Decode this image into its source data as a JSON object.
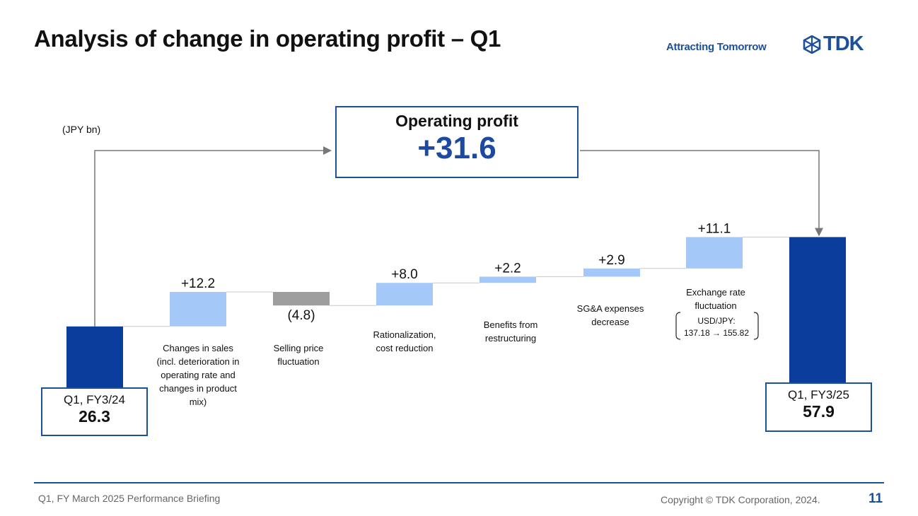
{
  "slide": {
    "title": "Analysis of change in operating profit – Q1",
    "tagline": "Attracting Tomorrow",
    "logo_text": "TDK",
    "unit": "(JPY bn)"
  },
  "summary": {
    "label": "Operating profit",
    "value": "+31.6"
  },
  "chart_data": {
    "type": "bar",
    "subtype": "waterfall",
    "categories": [
      "Q1, FY3/24",
      "Changes in sales",
      "Selling price fluctuation",
      "Rationalization, cost reduction",
      "Benefits from restructuring",
      "SG&A expenses decrease",
      "Exchange rate fluctuation",
      "Q1, FY3/25"
    ],
    "kinds": [
      "total",
      "delta",
      "delta",
      "delta",
      "delta",
      "delta",
      "delta",
      "total"
    ],
    "values": [
      26.3,
      12.2,
      -4.8,
      8.0,
      2.2,
      2.9,
      11.1,
      57.9
    ],
    "value_labels": [
      "26.3",
      "+12.2",
      "(4.8)",
      "+8.0",
      "+2.2",
      "+2.9",
      "+11.1",
      "57.9"
    ],
    "annotations": [
      "",
      "Changes in sales\n(incl. deterioration in\noperating rate and\nchanges in product\nmix)",
      "Selling price\nfluctuation",
      "Rationalization,\ncost reduction",
      "Benefits from\nrestructuring",
      "SG&A expenses\ndecrease",
      "Exchange rate\nfluctuation",
      ""
    ],
    "fx_note": "USD/JPY:\n137.18 → 155.82",
    "colors": {
      "total": "#0a3d9c",
      "increase": "#a4c8f7",
      "decrease": "#9e9e9e",
      "connector": "#c8c8c8",
      "arrow": "#777777"
    }
  },
  "end_boxes": {
    "start": {
      "label": "Q1, FY3/24",
      "value": "26.3"
    },
    "end": {
      "label": "Q1, FY3/25",
      "value": "57.9"
    }
  },
  "footer": {
    "left": "Q1, FY March 2025 Performance Briefing",
    "copyright": "Copyright  © TDK Corporation, 2024.",
    "page": "11"
  }
}
